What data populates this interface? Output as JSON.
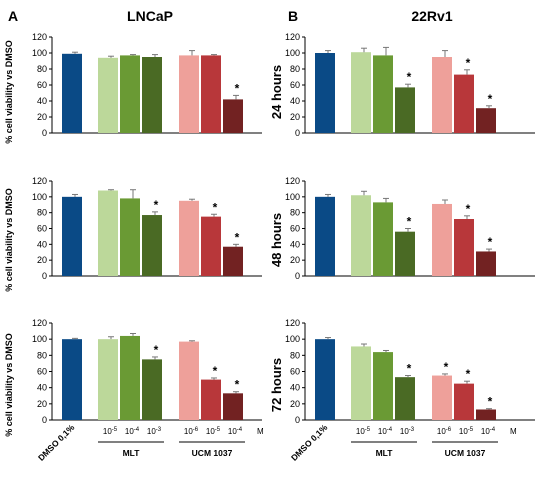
{
  "panels": [
    {
      "letter": "A",
      "cell_line": "LNCaP"
    },
    {
      "letter": "B",
      "cell_line": "22Rv1"
    }
  ],
  "time_labels": [
    "24 hours",
    "48 hours",
    "72 hours"
  ],
  "ylabel": "% cell viability vs DMSO",
  "yticks": [
    0,
    20,
    40,
    60,
    80,
    100,
    120
  ],
  "categories": [
    "DMSO 0,1%",
    "10-5",
    "10-4",
    "10-3",
    "10-6",
    "10-5",
    "10-4"
  ],
  "x_labels": {
    "dmso": "DMSO 0,1%",
    "mlt_concs": [
      "10-5",
      "10-4",
      "10-3"
    ],
    "ucm_concs": [
      "10-6",
      "10-5",
      "10-4"
    ],
    "unit": "M",
    "group_mlt": "MLT",
    "group_ucm": "UCM 1037"
  },
  "colors": [
    "#0a4a86",
    "#bcd89a",
    "#6a9a34",
    "#4a6a24",
    "#eea09a",
    "#b8373a",
    "#722222"
  ],
  "chart_data": [
    {
      "type": "bar",
      "panel": "A",
      "cell_line": "LNCaP",
      "time": "24 hours",
      "ylim": [
        0,
        120
      ],
      "categories": [
        "DMSO 0,1%",
        "MLT 10-5",
        "MLT 10-4",
        "MLT 10-3",
        "UCM 1037 10-6",
        "UCM 1037 10-5",
        "UCM 1037 10-4"
      ],
      "values": [
        99,
        94,
        97,
        95,
        97,
        97,
        42
      ],
      "errors": [
        2,
        2,
        1,
        3,
        6,
        1,
        5
      ],
      "significant": [
        false,
        false,
        false,
        false,
        false,
        false,
        true
      ]
    },
    {
      "type": "bar",
      "panel": "A",
      "cell_line": "LNCaP",
      "time": "48 hours",
      "ylim": [
        0,
        120
      ],
      "categories": [
        "DMSO 0,1%",
        "MLT 10-5",
        "MLT 10-4",
        "MLT 10-3",
        "UCM 1037 10-6",
        "UCM 1037 10-5",
        "UCM 1037 10-4"
      ],
      "values": [
        100,
        108,
        98,
        77,
        95,
        75,
        37
      ],
      "errors": [
        3,
        1,
        11,
        4,
        2,
        3,
        3
      ],
      "significant": [
        false,
        false,
        false,
        true,
        false,
        true,
        true
      ]
    },
    {
      "type": "bar",
      "panel": "A",
      "cell_line": "LNCaP",
      "time": "72 hours",
      "ylim": [
        0,
        120
      ],
      "categories": [
        "DMSO 0,1%",
        "MLT 10-5",
        "MLT 10-4",
        "MLT 10-3",
        "UCM 1037 10-6",
        "UCM 1037 10-5",
        "UCM 1037 10-4"
      ],
      "values": [
        100,
        100,
        104,
        75,
        97,
        50,
        33
      ],
      "errors": [
        1,
        3,
        3,
        3,
        1,
        2,
        2
      ],
      "significant": [
        false,
        false,
        false,
        true,
        false,
        true,
        true
      ]
    },
    {
      "type": "bar",
      "panel": "B",
      "cell_line": "22Rv1",
      "time": "24 hours",
      "ylim": [
        0,
        120
      ],
      "categories": [
        "DMSO 0,1%",
        "MLT 10-5",
        "MLT 10-4",
        "MLT 10-3",
        "UCM 1037 10-6",
        "UCM 1037 10-5",
        "UCM 1037 10-4"
      ],
      "values": [
        100,
        101,
        97,
        57,
        95,
        73,
        31
      ],
      "errors": [
        3,
        5,
        10,
        4,
        8,
        6,
        3
      ],
      "significant": [
        false,
        false,
        false,
        true,
        false,
        true,
        true
      ]
    },
    {
      "type": "bar",
      "panel": "B",
      "cell_line": "22Rv1",
      "time": "48 hours",
      "ylim": [
        0,
        120
      ],
      "categories": [
        "DMSO 0,1%",
        "MLT 10-5",
        "MLT 10-4",
        "MLT 10-3",
        "UCM 1037 10-6",
        "UCM 1037 10-5",
        "UCM 1037 10-4"
      ],
      "values": [
        100,
        102,
        93,
        56,
        91,
        72,
        31
      ],
      "errors": [
        3,
        5,
        5,
        4,
        5,
        4,
        3
      ],
      "significant": [
        false,
        false,
        false,
        true,
        false,
        true,
        true
      ]
    },
    {
      "type": "bar",
      "panel": "B",
      "cell_line": "22Rv1",
      "time": "72 hours",
      "ylim": [
        0,
        120
      ],
      "categories": [
        "DMSO 0,1%",
        "MLT 10-5",
        "MLT 10-4",
        "MLT 10-3",
        "UCM 1037 10-6",
        "UCM 1037 10-5",
        "UCM 1037 10-4"
      ],
      "values": [
        100,
        91,
        84,
        53,
        55,
        45,
        13
      ],
      "errors": [
        2,
        3,
        2,
        2,
        2,
        3,
        1
      ],
      "significant": [
        false,
        false,
        false,
        true,
        true,
        true,
        true
      ]
    }
  ]
}
